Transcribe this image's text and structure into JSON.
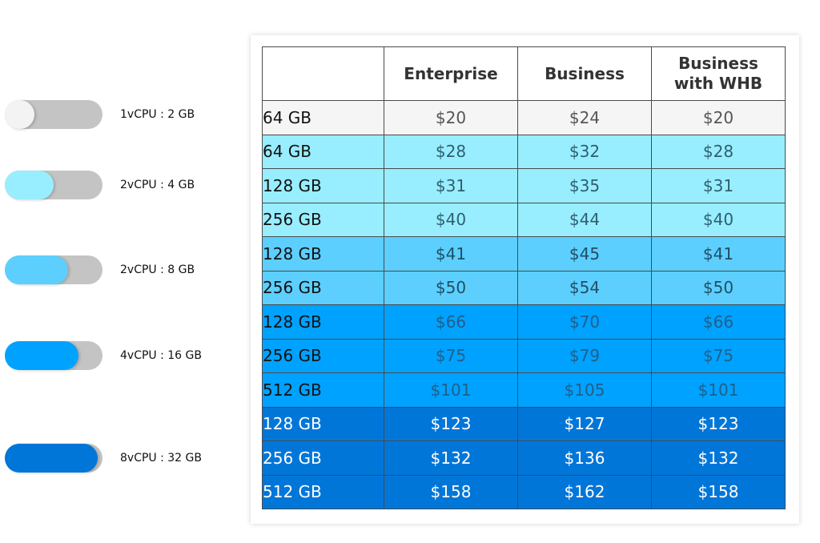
{
  "sliders": [
    {
      "label": "1vCPU : 2 GB",
      "level": 0.3,
      "color": "#f3f3f3"
    },
    {
      "label": "2vCPU : 4 GB",
      "level": 0.5,
      "color": "#98eeff"
    },
    {
      "label": "2vCPU : 8 GB",
      "level": 0.65,
      "color": "#5ccfff"
    },
    {
      "label": "4vCPU : 16 GB",
      "level": 0.75,
      "color": "#00a2ff"
    },
    {
      "label": "8vCPU : 32 GB",
      "level": 0.95,
      "color": "#0076d9"
    }
  ],
  "table": {
    "headers": [
      "",
      "Enterprise",
      "Business",
      "Business\nwith WHB"
    ],
    "rows": [
      {
        "storage": "64 GB",
        "enterprise": "$20",
        "business": "$24",
        "whb": "$20",
        "bg": "#f5f5f5",
        "color": "#555555",
        "storageColor": "#111111"
      },
      {
        "storage": "64 GB",
        "enterprise": "$28",
        "business": "$32",
        "whb": "$28",
        "bg": "#98eeff",
        "color": "#2f5f70",
        "storageColor": "#111111"
      },
      {
        "storage": "128 GB",
        "enterprise": "$31",
        "business": "$35",
        "whb": "$31",
        "bg": "#98eeff",
        "color": "#2f5f70",
        "storageColor": "#111111"
      },
      {
        "storage": "256 GB",
        "enterprise": "$40",
        "business": "$44",
        "whb": "$40",
        "bg": "#98eeff",
        "color": "#2f5f70",
        "storageColor": "#111111"
      },
      {
        "storage": "128 GB",
        "enterprise": "$41",
        "business": "$45",
        "whb": "$41",
        "bg": "#5ccfff",
        "color": "#1f4f66",
        "storageColor": "#111111"
      },
      {
        "storage": "256 GB",
        "enterprise": "$50",
        "business": "$54",
        "whb": "$50",
        "bg": "#5ccfff",
        "color": "#1f4f66",
        "storageColor": "#111111"
      },
      {
        "storage": "128 GB",
        "enterprise": "$66",
        "business": "$70",
        "whb": "$66",
        "bg": "#00a2ff",
        "color": "#1f5f8a",
        "storageColor": "#111111"
      },
      {
        "storage": "256 GB",
        "enterprise": "$75",
        "business": "$79",
        "whb": "$75",
        "bg": "#00a2ff",
        "color": "#1f5f8a",
        "storageColor": "#111111"
      },
      {
        "storage": "512 GB",
        "enterprise": "$101",
        "business": "$105",
        "whb": "$101",
        "bg": "#00a2ff",
        "color": "#1f5f8a",
        "storageColor": "#111111"
      },
      {
        "storage": "128 GB",
        "enterprise": "$123",
        "business": "$127",
        "whb": "$123",
        "bg": "#0076d9",
        "color": "#ffffff",
        "storageColor": "#ffffff"
      },
      {
        "storage": "256 GB",
        "enterprise": "$132",
        "business": "$136",
        "whb": "$132",
        "bg": "#0076d9",
        "color": "#ffffff",
        "storageColor": "#ffffff"
      },
      {
        "storage": "512 GB",
        "enterprise": "$158",
        "business": "$162",
        "whb": "$158",
        "bg": "#0076d9",
        "color": "#ffffff",
        "storageColor": "#ffffff"
      }
    ]
  }
}
